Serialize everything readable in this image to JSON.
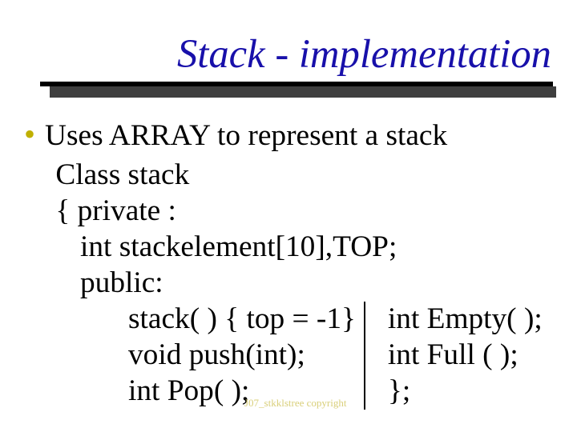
{
  "title": {
    "text": "Stack - implementation",
    "color": "#1810aa",
    "fontsize_pt": 38
  },
  "underline": {
    "color": "#000000",
    "shadow_color": "#3f3f3f"
  },
  "bullet": {
    "glyph": "•",
    "color": "#c0b000",
    "fontsize_pt": 30
  },
  "body": {
    "fontsize_pt": 28,
    "color": "#000000",
    "line1": "Uses ARRAY to represent a stack",
    "line2": " Class stack",
    "line3": " { private :",
    "line4": "int stackelement[10],TOP;",
    "line5": "public:",
    "left_col": {
      "l1": "stack( ) { top = -1}",
      "l2": "void push(int);",
      "l3": "int Pop( );"
    },
    "right_col": {
      "r1": "int Empty( );",
      "r2": "int Full ( );",
      "r3": "};"
    }
  },
  "watermark": {
    "text": "J07_stkklstree copyright",
    "color": "#d9cf7a"
  }
}
